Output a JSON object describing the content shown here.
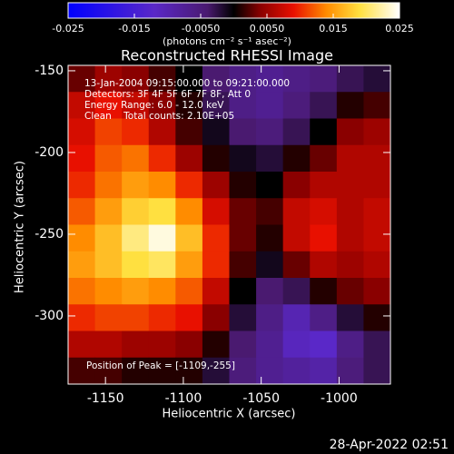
{
  "chart_data": {
    "type": "heatmap",
    "title": "Reconstructed RHESSI Image",
    "x_label": "Heliocentric X (arcsec)",
    "y_label": "Heliocentric Y (arcsec)",
    "annotations": [
      "13-Jan-2004 09:15:00.000 to 09:21:00.000",
      "Detectors: 3F 4F 5F 6F 7F 8F, Att 0",
      "Energy Range: 6.0 - 12.0 keV",
      "Clean    Total counts: 2.10E+05"
    ],
    "peak_annotation": "Position of Peak = [-1109,-255]",
    "footer": "28-Apr-2022 02:51",
    "colorbar_label": "(photons cm⁻² s⁻¹ asec⁻²)",
    "clim": [
      -0.025,
      0.025
    ],
    "cticks": [
      -0.025,
      -0.015,
      {
        "value": -0.005,
        "label": "-0.0050"
      },
      {
        "value": 0.005,
        "label": "0.0050"
      },
      0.015,
      0.025
    ],
    "colormap": [
      {
        "value": -0.025,
        "color": "#0000ff"
      },
      {
        "value": -0.012,
        "color": "#5a28c8"
      },
      {
        "value": -0.004,
        "color": "#4a1a70"
      },
      {
        "value": 0,
        "color": "#000000"
      },
      {
        "value": 0.004,
        "color": "#8a0000"
      },
      {
        "value": 0.009,
        "color": "#e81000"
      },
      {
        "value": 0.014,
        "color": "#ff8c00"
      },
      {
        "value": 0.019,
        "color": "#ffe040"
      },
      {
        "value": 0.025,
        "color": "#ffffff"
      }
    ],
    "xlim": [
      -1174,
      -967
    ],
    "ylim": [
      -341.7,
      -146.7
    ],
    "xticks": [
      -1150,
      -1100,
      -1050,
      -1000
    ],
    "yticks": [
      -150,
      -200,
      -250,
      -300
    ],
    "z": [
      [
        0.003,
        0.005,
        0.004,
        0.002,
        0.0,
        -0.004,
        -0.006,
        -0.007,
        -0.006,
        -0.005,
        -0.003,
        -0.002
      ],
      [
        0.007,
        0.009,
        0.007,
        0.004,
        0.001,
        -0.003,
        -0.006,
        -0.007,
        -0.005,
        -0.003,
        0.001,
        0.002
      ],
      [
        0.008,
        0.011,
        0.01,
        0.006,
        0.002,
        -0.001,
        -0.004,
        -0.005,
        -0.003,
        0.0,
        0.004,
        0.005
      ],
      [
        0.009,
        0.012,
        0.013,
        0.01,
        0.005,
        0.001,
        -0.001,
        -0.002,
        0.001,
        0.003,
        0.006,
        0.006
      ],
      [
        0.01,
        0.013,
        0.015,
        0.014,
        0.01,
        0.005,
        0.001,
        0.0,
        0.004,
        0.006,
        0.006,
        0.006
      ],
      [
        0.012,
        0.015,
        0.018,
        0.019,
        0.014,
        0.008,
        0.003,
        0.002,
        0.007,
        0.008,
        0.006,
        0.007
      ],
      [
        0.014,
        0.017,
        0.021,
        0.024,
        0.017,
        0.01,
        0.003,
        0.001,
        0.007,
        0.009,
        0.006,
        0.007
      ],
      [
        0.015,
        0.017,
        0.019,
        0.02,
        0.015,
        0.01,
        0.002,
        -0.001,
        0.003,
        0.006,
        0.005,
        0.006
      ],
      [
        0.013,
        0.014,
        0.015,
        0.014,
        0.012,
        0.007,
        0.0,
        -0.004,
        -0.003,
        0.001,
        0.003,
        0.004
      ],
      [
        0.01,
        0.011,
        0.011,
        0.01,
        0.009,
        0.004,
        -0.002,
        -0.006,
        -0.01,
        -0.006,
        -0.002,
        0.001
      ],
      [
        0.006,
        0.006,
        0.005,
        0.005,
        0.004,
        0.001,
        -0.004,
        -0.007,
        -0.011,
        -0.012,
        -0.006,
        -0.003
      ],
      [
        0.002,
        0.002,
        0.001,
        0.001,
        0.001,
        -0.002,
        -0.005,
        -0.007,
        -0.008,
        -0.009,
        -0.005,
        -0.003
      ]
    ]
  }
}
